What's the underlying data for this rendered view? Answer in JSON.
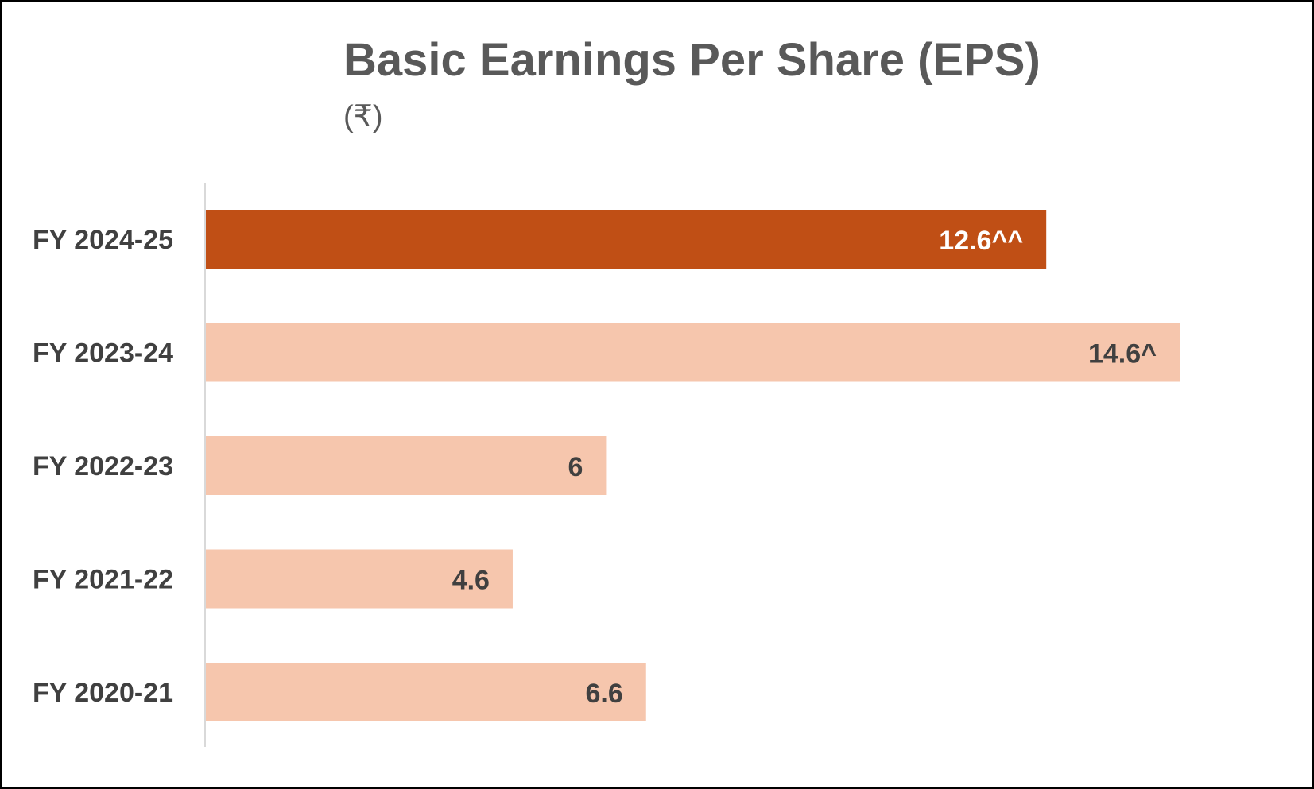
{
  "chart_data": {
    "type": "bar",
    "orientation": "horizontal",
    "title": "Basic Earnings Per Share (EPS)",
    "subtitle": "(₹)",
    "categories": [
      "FY 2024-25",
      "FY 2023-24",
      "FY 2022-23",
      "FY 2021-22",
      "FY 2020-21"
    ],
    "values": [
      12.6,
      14.6,
      6,
      4.6,
      6.6
    ],
    "value_labels": [
      "12.6^^",
      "14.6^",
      "6",
      "4.6",
      "6.6"
    ],
    "highlight_index": 0,
    "xlim": [
      0,
      14.6
    ],
    "grid": false,
    "legend": "none",
    "colors": {
      "highlight": "#C04F15",
      "normal": "#F6C6AD",
      "highlight_label": "#FFFFFF",
      "normal_label": "#404040",
      "axis": "#D9D9D9"
    }
  }
}
